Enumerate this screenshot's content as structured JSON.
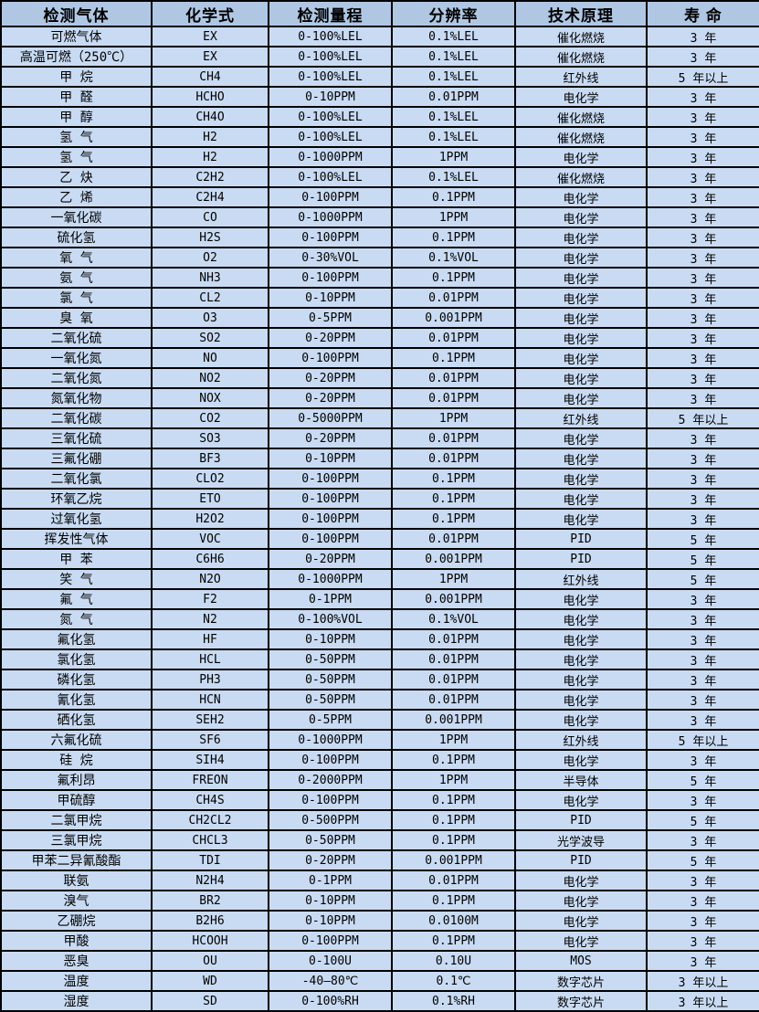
{
  "colors": {
    "header_bg": "#b0c7e4",
    "row_bg": "#c9dbf3",
    "border": "#000000",
    "text": "#000000"
  },
  "table": {
    "column_keys": [
      "gas",
      "formula",
      "range",
      "resolution",
      "principle",
      "lifespan"
    ],
    "headers": [
      "检测气体",
      "化学式",
      "检测量程",
      "分辨率",
      "技术原理",
      "寿  命"
    ],
    "rows": [
      [
        "可燃气体",
        "EX",
        "0-100%LEL",
        "0.1%LEL",
        "催化燃烧",
        "3 年"
      ],
      [
        "高温可燃（250℃）",
        "EX",
        "0-100%LEL",
        "0.1%LEL",
        "催化燃烧",
        "3 年"
      ],
      [
        "甲  烷",
        "CH4",
        "0-100%LEL",
        "0.1%LEL",
        "红外线",
        "5 年以上"
      ],
      [
        "甲  醛",
        "HCHO",
        "0-10PPM",
        "0.01PPM",
        "电化学",
        "3 年"
      ],
      [
        "甲  醇",
        "CH4O",
        "0-100%LEL",
        "0.1%LEL",
        "催化燃烧",
        "3 年"
      ],
      [
        "氢  气",
        "H2",
        "0-100%LEL",
        "0.1%LEL",
        "催化燃烧",
        "3 年"
      ],
      [
        "氢  气",
        "H2",
        "0-1000PPM",
        "1PPM",
        "电化学",
        "3 年"
      ],
      [
        "乙  炔",
        "C2H2",
        "0-100%LEL",
        "0.1%LEL",
        "催化燃烧",
        "3 年"
      ],
      [
        "乙  烯",
        "C2H4",
        "0-100PPM",
        "0.1PPM",
        "电化学",
        "3 年"
      ],
      [
        "一氧化碳",
        "CO",
        "0-1000PPM",
        "1PPM",
        "电化学",
        "3 年"
      ],
      [
        "硫化氢",
        "H2S",
        "0-100PPM",
        "0.1PPM",
        "电化学",
        "3 年"
      ],
      [
        "氧  气",
        "O2",
        "0-30%VOL",
        "0.1%VOL",
        "电化学",
        "3 年"
      ],
      [
        "氨  气",
        "NH3",
        "0-100PPM",
        "0.1PPM",
        "电化学",
        "3 年"
      ],
      [
        "氯  气",
        "CL2",
        "0-10PPM",
        "0.01PPM",
        "电化学",
        "3 年"
      ],
      [
        "臭  氧",
        "O3",
        "0-5PPM",
        "0.001PPM",
        "电化学",
        "3 年"
      ],
      [
        "二氧化硫",
        "SO2",
        "0-20PPM",
        "0.01PPM",
        "电化学",
        "3 年"
      ],
      [
        "一氧化氮",
        "NO",
        "0-100PPM",
        "0.1PPM",
        "电化学",
        "3 年"
      ],
      [
        "二氧化氮",
        "NO2",
        "0-20PPM",
        "0.01PPM",
        "电化学",
        "3 年"
      ],
      [
        "氮氧化物",
        "NOX",
        "0-20PPM",
        "0.01PPM",
        "电化学",
        "3 年"
      ],
      [
        "二氧化碳",
        "CO2",
        "0-5000PPM",
        "1PPM",
        "红外线",
        "5 年以上"
      ],
      [
        "三氧化硫",
        "SO3",
        "0-20PPM",
        "0.01PPM",
        "电化学",
        "3 年"
      ],
      [
        "三氟化硼",
        "BF3",
        "0-10PPM",
        "0.01PPM",
        "电化学",
        "3 年"
      ],
      [
        "二氧化氯",
        "CLO2",
        "0-100PPM",
        "0.1PPM",
        "电化学",
        "3 年"
      ],
      [
        "环氧乙烷",
        "ETO",
        "0-100PPM",
        "0.1PPM",
        "电化学",
        "3 年"
      ],
      [
        "过氧化氢",
        "H2O2",
        "0-100PPM",
        "0.1PPM",
        "电化学",
        "3 年"
      ],
      [
        "挥发性气体",
        "VOC",
        "0-100PPM",
        "0.01PPM",
        "PID",
        "5 年"
      ],
      [
        "甲  苯",
        "C6H6",
        "0-20PPM",
        "0.001PPM",
        "PID",
        "5 年"
      ],
      [
        "笑  气",
        "N2O",
        "0-1000PPM",
        "1PPM",
        "红外线",
        "5 年"
      ],
      [
        "氟  气",
        "F2",
        "0-1PPM",
        "0.001PPM",
        "电化学",
        "3 年"
      ],
      [
        "氮  气",
        "N2",
        "0-100%VOL",
        "0.1%VOL",
        "电化学",
        "3 年"
      ],
      [
        "氟化氢",
        "HF",
        "0-10PPM",
        "0.01PPM",
        "电化学",
        "3 年"
      ],
      [
        "氯化氢",
        "HCL",
        "0-50PPM",
        "0.01PPM",
        "电化学",
        "3 年"
      ],
      [
        "磷化氢",
        "PH3",
        "0-50PPM",
        "0.01PPM",
        "电化学",
        "3 年"
      ],
      [
        "氰化氢",
        "HCN",
        "0-50PPM",
        "0.01PPM",
        "电化学",
        "3 年"
      ],
      [
        "硒化氢",
        "SEH2",
        "0-5PPM",
        "0.001PPM",
        "电化学",
        "3 年"
      ],
      [
        "六氟化硫",
        "SF6",
        "0-1000PPM",
        "1PPM",
        "红外线",
        "5 年以上"
      ],
      [
        "硅  烷",
        "SIH4",
        "0-100PPM",
        "0.1PPM",
        "电化学",
        "3 年"
      ],
      [
        "氟利昂",
        "FREON",
        "0-2000PPM",
        "1PPM",
        "半导体",
        "5 年"
      ],
      [
        "甲硫醇",
        "CH4S",
        "0-100PPM",
        "0.1PPM",
        "电化学",
        "3 年"
      ],
      [
        "二氯甲烷",
        "CH2CL2",
        "0-500PPM",
        "0.1PPM",
        "PID",
        "5 年"
      ],
      [
        "三氯甲烷",
        "CHCL3",
        "0-50PPM",
        "0.1PPM",
        "光学波导",
        "3 年"
      ],
      [
        "甲苯二异氰酸酯",
        "TDI",
        "0-20PPM",
        "0.001PPM",
        "PID",
        "5 年"
      ],
      [
        "联氨",
        "N2H4",
        "0-1PPM",
        "0.01PPM",
        "电化学",
        "3 年"
      ],
      [
        "溴气",
        "BR2",
        "0-10PPM",
        "0.1PPM",
        "电化学",
        "3 年"
      ],
      [
        "乙硼烷",
        "B2H6",
        "0-10PPM",
        "0.0100M",
        "电化学",
        "3 年"
      ],
      [
        "甲酸",
        "HCOOH",
        "0-100PPM",
        "0.1PPM",
        "电化学",
        "3 年"
      ],
      [
        "恶臭",
        "OU",
        "0-100U",
        "0.10U",
        "MOS",
        "3 年"
      ],
      [
        "温度",
        "WD",
        "-40—80℃",
        "0.1℃",
        "数字芯片",
        "3 年以上"
      ],
      [
        "湿度",
        "SD",
        "0-100%RH",
        "0.1%RH",
        "数字芯片",
        "3 年以上"
      ]
    ]
  }
}
